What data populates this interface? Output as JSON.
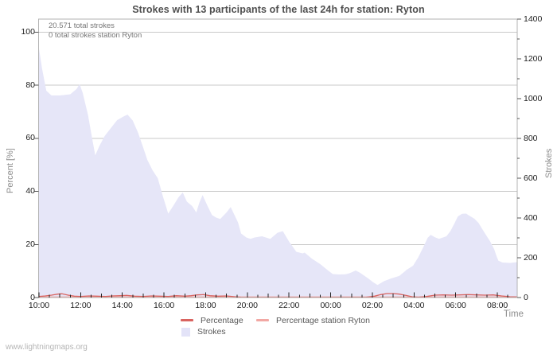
{
  "header": {
    "title": "Strokes with 13 participants of the last 24h for station: Ryton"
  },
  "annotations": {
    "total_strokes": "20.571 total strokes",
    "station_strokes": "0 total strokes station Ryton"
  },
  "legend": {
    "items": [
      {
        "label": "Percentage",
        "color": "#d9635f",
        "swatch": "line"
      },
      {
        "label": "Percentage station Ryton",
        "color": "#f2a8a4",
        "swatch": "line"
      },
      {
        "label": "Strokes",
        "color": "#e3e3f8",
        "swatch": "box"
      }
    ]
  },
  "footer": {
    "watermark": "www.lightningmaps.org"
  },
  "chart_data": {
    "type": "area",
    "title": "Strokes with 13 participants of the last 24h for station: Ryton",
    "x_axis": {
      "label": "Time",
      "unit": "hours_since_10:00",
      "tick_labels": [
        "10:00",
        "12:00",
        "14:00",
        "16:00",
        "18:00",
        "20:00",
        "22:00",
        "00:00",
        "02:00",
        "04:00",
        "06:00",
        "08:00"
      ],
      "tick_hours": [
        0,
        2,
        4,
        6,
        8,
        10,
        12,
        14,
        16,
        18,
        20,
        22
      ],
      "minor_tick_step_hours": 0.5,
      "span_hours": 22.95
    },
    "left_axis": {
      "label": "Percent  [%]",
      "range": [
        0,
        100
      ],
      "ticks": [
        0,
        20,
        40,
        60,
        80,
        100
      ],
      "gridlines": true
    },
    "right_axis": {
      "label": "Strokes",
      "range": [
        0,
        1400
      ],
      "ticks": [
        0,
        200,
        400,
        600,
        800,
        1000,
        1200,
        1400
      ],
      "minor_tick_step": 100
    },
    "series": [
      {
        "name": "Strokes",
        "type": "area",
        "axis": "right",
        "color": "#e6e6f8",
        "points": [
          [
            0,
            1252
          ],
          [
            0.15,
            1150
          ],
          [
            0.35,
            1040
          ],
          [
            0.6,
            1016
          ],
          [
            1.0,
            1016
          ],
          [
            1.5,
            1022
          ],
          [
            1.8,
            1048
          ],
          [
            1.95,
            1073
          ],
          [
            2.1,
            1028
          ],
          [
            2.35,
            920
          ],
          [
            2.55,
            800
          ],
          [
            2.7,
            715
          ],
          [
            2.9,
            762
          ],
          [
            3.15,
            812
          ],
          [
            3.45,
            852
          ],
          [
            3.75,
            892
          ],
          [
            4.05,
            910
          ],
          [
            4.25,
            920
          ],
          [
            4.5,
            890
          ],
          [
            4.75,
            830
          ],
          [
            5.0,
            755
          ],
          [
            5.2,
            692
          ],
          [
            5.45,
            640
          ],
          [
            5.7,
            600
          ],
          [
            5.95,
            508
          ],
          [
            6.2,
            422
          ],
          [
            6.45,
            462
          ],
          [
            6.7,
            505
          ],
          [
            6.9,
            528
          ],
          [
            7.1,
            482
          ],
          [
            7.35,
            460
          ],
          [
            7.55,
            428
          ],
          [
            7.7,
            478
          ],
          [
            7.85,
            515
          ],
          [
            8.1,
            458
          ],
          [
            8.3,
            415
          ],
          [
            8.5,
            402
          ],
          [
            8.7,
            395
          ],
          [
            9.0,
            428
          ],
          [
            9.2,
            455
          ],
          [
            9.55,
            378
          ],
          [
            9.7,
            322
          ],
          [
            9.95,
            302
          ],
          [
            10.15,
            295
          ],
          [
            10.35,
            302
          ],
          [
            10.7,
            308
          ],
          [
            11.1,
            295
          ],
          [
            11.45,
            326
          ],
          [
            11.7,
            334
          ],
          [
            12.0,
            282
          ],
          [
            12.35,
            230
          ],
          [
            12.65,
            222
          ],
          [
            12.75,
            226
          ],
          [
            13.1,
            195
          ],
          [
            13.5,
            168
          ],
          [
            13.85,
            138
          ],
          [
            14.1,
            118
          ],
          [
            14.4,
            116
          ],
          [
            14.7,
            117
          ],
          [
            14.9,
            122
          ],
          [
            15.2,
            136
          ],
          [
            15.4,
            125
          ],
          [
            15.8,
            96
          ],
          [
            16.05,
            76
          ],
          [
            16.25,
            63
          ],
          [
            16.55,
            82
          ],
          [
            16.9,
            96
          ],
          [
            17.3,
            109
          ],
          [
            17.65,
            140
          ],
          [
            17.95,
            160
          ],
          [
            18.2,
            202
          ],
          [
            18.45,
            255
          ],
          [
            18.65,
            300
          ],
          [
            18.8,
            315
          ],
          [
            19.0,
            303
          ],
          [
            19.2,
            295
          ],
          [
            19.55,
            308
          ],
          [
            19.75,
            335
          ],
          [
            19.95,
            375
          ],
          [
            20.1,
            408
          ],
          [
            20.3,
            421
          ],
          [
            20.5,
            422
          ],
          [
            20.6,
            415
          ],
          [
            20.9,
            396
          ],
          [
            21.1,
            374
          ],
          [
            21.25,
            348
          ],
          [
            21.45,
            315
          ],
          [
            21.65,
            282
          ],
          [
            21.85,
            242
          ],
          [
            21.95,
            210
          ],
          [
            22.05,
            185
          ],
          [
            22.25,
            176
          ],
          [
            22.6,
            174
          ],
          [
            22.95,
            178
          ]
        ]
      },
      {
        "name": "Percentage",
        "type": "line",
        "axis": "left",
        "color": "#d9635f",
        "points": [
          [
            0,
            0.4
          ],
          [
            0.3,
            0.6
          ],
          [
            0.6,
            0.9
          ],
          [
            0.9,
            1.3
          ],
          [
            1.1,
            1.4
          ],
          [
            1.4,
            0.9
          ],
          [
            1.7,
            0.5
          ],
          [
            2.0,
            0.4
          ],
          [
            2.4,
            0.6
          ],
          [
            2.8,
            0.5
          ],
          [
            3.2,
            0.4
          ],
          [
            3.5,
            0.6
          ],
          [
            3.9,
            0.7
          ],
          [
            4.2,
            0.8
          ],
          [
            4.6,
            0.5
          ],
          [
            5.0,
            0.4
          ],
          [
            5.4,
            0.6
          ],
          [
            5.8,
            0.5
          ],
          [
            6.2,
            0.4
          ],
          [
            6.6,
            0.7
          ],
          [
            7.0,
            0.5
          ],
          [
            7.3,
            0.7
          ],
          [
            7.6,
            1.0
          ],
          [
            7.9,
            1.1
          ],
          [
            8.2,
            0.7
          ],
          [
            8.6,
            0.5
          ],
          [
            9.0,
            0.6
          ],
          [
            9.4,
            0.3
          ],
          [
            9.7,
            0.1
          ],
          [
            10.0,
            0.05
          ],
          [
            11.0,
            0.05
          ],
          [
            12.0,
            0.05
          ],
          [
            13.0,
            0.05
          ],
          [
            14.0,
            0.05
          ],
          [
            15.0,
            0.05
          ],
          [
            15.7,
            0.1
          ],
          [
            16.1,
            0.5
          ],
          [
            16.4,
            1.1
          ],
          [
            16.7,
            1.5
          ],
          [
            17.0,
            1.5
          ],
          [
            17.3,
            1.3
          ],
          [
            17.6,
            0.8
          ],
          [
            17.9,
            0.3
          ],
          [
            18.2,
            0.1
          ],
          [
            18.6,
            0.4
          ],
          [
            19.0,
            0.9
          ],
          [
            19.4,
            1.0
          ],
          [
            19.8,
            0.9
          ],
          [
            20.2,
            1.0
          ],
          [
            20.6,
            1.1
          ],
          [
            21.0,
            1.0
          ],
          [
            21.4,
            0.9
          ],
          [
            21.8,
            1.0
          ],
          [
            22.2,
            0.6
          ],
          [
            22.6,
            0.3
          ],
          [
            22.95,
            0.2
          ]
        ]
      },
      {
        "name": "Percentage station Ryton",
        "type": "line",
        "axis": "left",
        "color": "#f2a8a4",
        "points": [
          [
            0,
            0
          ],
          [
            22.95,
            0
          ]
        ]
      }
    ]
  }
}
